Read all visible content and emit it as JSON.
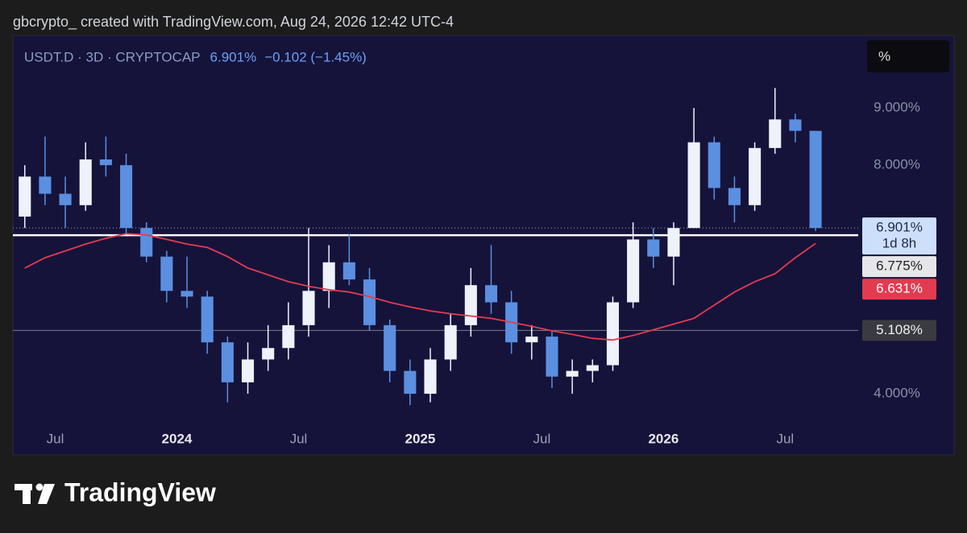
{
  "credit": "gbcrypto_ created with TradingView.com, Aug 24, 2026 12:42 UTC-4",
  "brand": "TradingView",
  "chart_data": {
    "type": "candlestick",
    "symbol": "USDT.D · 3D · CRYPTOCAP",
    "change": "−0.102 (−1.45%)",
    "unit_button": "%",
    "x": [
      "2023-05",
      "2023-06",
      "2023-07",
      "2023-08",
      "2023-09",
      "2023-10",
      "2023-11",
      "2023-12",
      "2024-01",
      "2024-02",
      "2024-03",
      "2024-04",
      "2024-05",
      "2024-06",
      "2024-07",
      "2024-08",
      "2024-09",
      "2024-10",
      "2024-11",
      "2024-12",
      "2025-01",
      "2025-02",
      "2025-03",
      "2025-04",
      "2025-05",
      "2025-06",
      "2025-07",
      "2025-08",
      "2025-09",
      "2025-10",
      "2025-11",
      "2025-12",
      "2026-01",
      "2026-02",
      "2026-03",
      "2026-04",
      "2026-05",
      "2026-06",
      "2026-07",
      "2026-08"
    ],
    "open": [
      7.1,
      7.8,
      7.5,
      7.3,
      8.1,
      8.0,
      6.9,
      6.4,
      5.8,
      5.7,
      4.9,
      4.2,
      4.6,
      4.8,
      5.2,
      5.8,
      6.3,
      6.0,
      5.2,
      4.4,
      4.0,
      4.6,
      5.2,
      5.9,
      5.6,
      4.9,
      5.0,
      4.3,
      4.4,
      4.5,
      5.6,
      6.7,
      6.4,
      6.9,
      8.4,
      7.6,
      7.3,
      8.3,
      8.8,
      8.6
    ],
    "high": [
      8.0,
      8.5,
      7.8,
      8.4,
      8.5,
      8.2,
      7.0,
      6.5,
      6.4,
      5.8,
      5.0,
      4.9,
      5.2,
      5.6,
      6.9,
      6.6,
      6.8,
      6.2,
      5.3,
      4.6,
      4.8,
      5.4,
      6.2,
      6.6,
      5.8,
      5.2,
      5.1,
      4.6,
      4.6,
      5.7,
      7.0,
      6.9,
      7.0,
      9.0,
      8.5,
      7.8,
      8.4,
      9.35,
      8.9,
      8.6
    ],
    "low": [
      6.9,
      7.3,
      6.9,
      7.2,
      7.8,
      6.8,
      6.3,
      5.6,
      5.5,
      4.7,
      3.85,
      4.0,
      4.4,
      4.6,
      5.0,
      5.5,
      5.9,
      5.1,
      4.2,
      3.8,
      3.85,
      4.4,
      5.0,
      5.4,
      4.7,
      4.6,
      4.1,
      4.0,
      4.2,
      4.4,
      5.5,
      6.2,
      5.9,
      6.9,
      7.4,
      7.0,
      7.2,
      8.2,
      8.4,
      6.85
    ],
    "close": [
      7.8,
      7.5,
      7.3,
      8.1,
      8.0,
      6.9,
      6.4,
      5.8,
      5.7,
      4.9,
      4.2,
      4.6,
      4.8,
      5.2,
      5.8,
      6.3,
      6.0,
      5.2,
      4.4,
      4.0,
      4.6,
      5.2,
      5.9,
      5.6,
      4.9,
      5.0,
      4.3,
      4.4,
      4.5,
      5.6,
      6.7,
      6.4,
      6.9,
      8.4,
      7.6,
      7.3,
      8.3,
      8.8,
      8.6,
      6.901
    ],
    "up_color": "#eef2fa",
    "down_color": "#5b8fe0",
    "moving_average": {
      "color": "#e23b50",
      "values": [
        6.2,
        6.38,
        6.5,
        6.62,
        6.72,
        6.8,
        6.78,
        6.7,
        6.62,
        6.56,
        6.4,
        6.2,
        6.08,
        5.96,
        5.88,
        5.82,
        5.78,
        5.7,
        5.6,
        5.52,
        5.45,
        5.4,
        5.36,
        5.32,
        5.25,
        5.18,
        5.1,
        5.04,
        4.97,
        4.94,
        5.02,
        5.12,
        5.22,
        5.32,
        5.55,
        5.78,
        5.96,
        6.1,
        6.38,
        6.631
      ],
      "last_label": "6.631%"
    },
    "last_price": {
      "value": 6.901,
      "label": "6.901%"
    },
    "countdown": "1d 8h",
    "price_lines": [
      {
        "value": 6.775,
        "label": "6.775%",
        "color": "#ffffff"
      },
      {
        "value": 5.108,
        "label": "5.108%",
        "color": "#7a7a86"
      }
    ],
    "xlim": [
      "2023-04",
      "2026-11"
    ],
    "xticks": [
      {
        "value": "2023-07",
        "label": "Jul"
      },
      {
        "value": "2024-01",
        "label": "2024"
      },
      {
        "value": "2024-07",
        "label": "Jul"
      },
      {
        "value": "2025-01",
        "label": "2025"
      },
      {
        "value": "2025-07",
        "label": "Jul"
      },
      {
        "value": "2026-01",
        "label": "2026"
      },
      {
        "value": "2026-07",
        "label": "Jul"
      }
    ],
    "ylim": [
      2.93,
      10.27
    ],
    "yticks": [
      {
        "value": 4,
        "label": "4.000%"
      },
      {
        "value": 8,
        "label": "8.000%"
      },
      {
        "value": 9,
        "label": "9.000%"
      }
    ],
    "grid": false
  }
}
